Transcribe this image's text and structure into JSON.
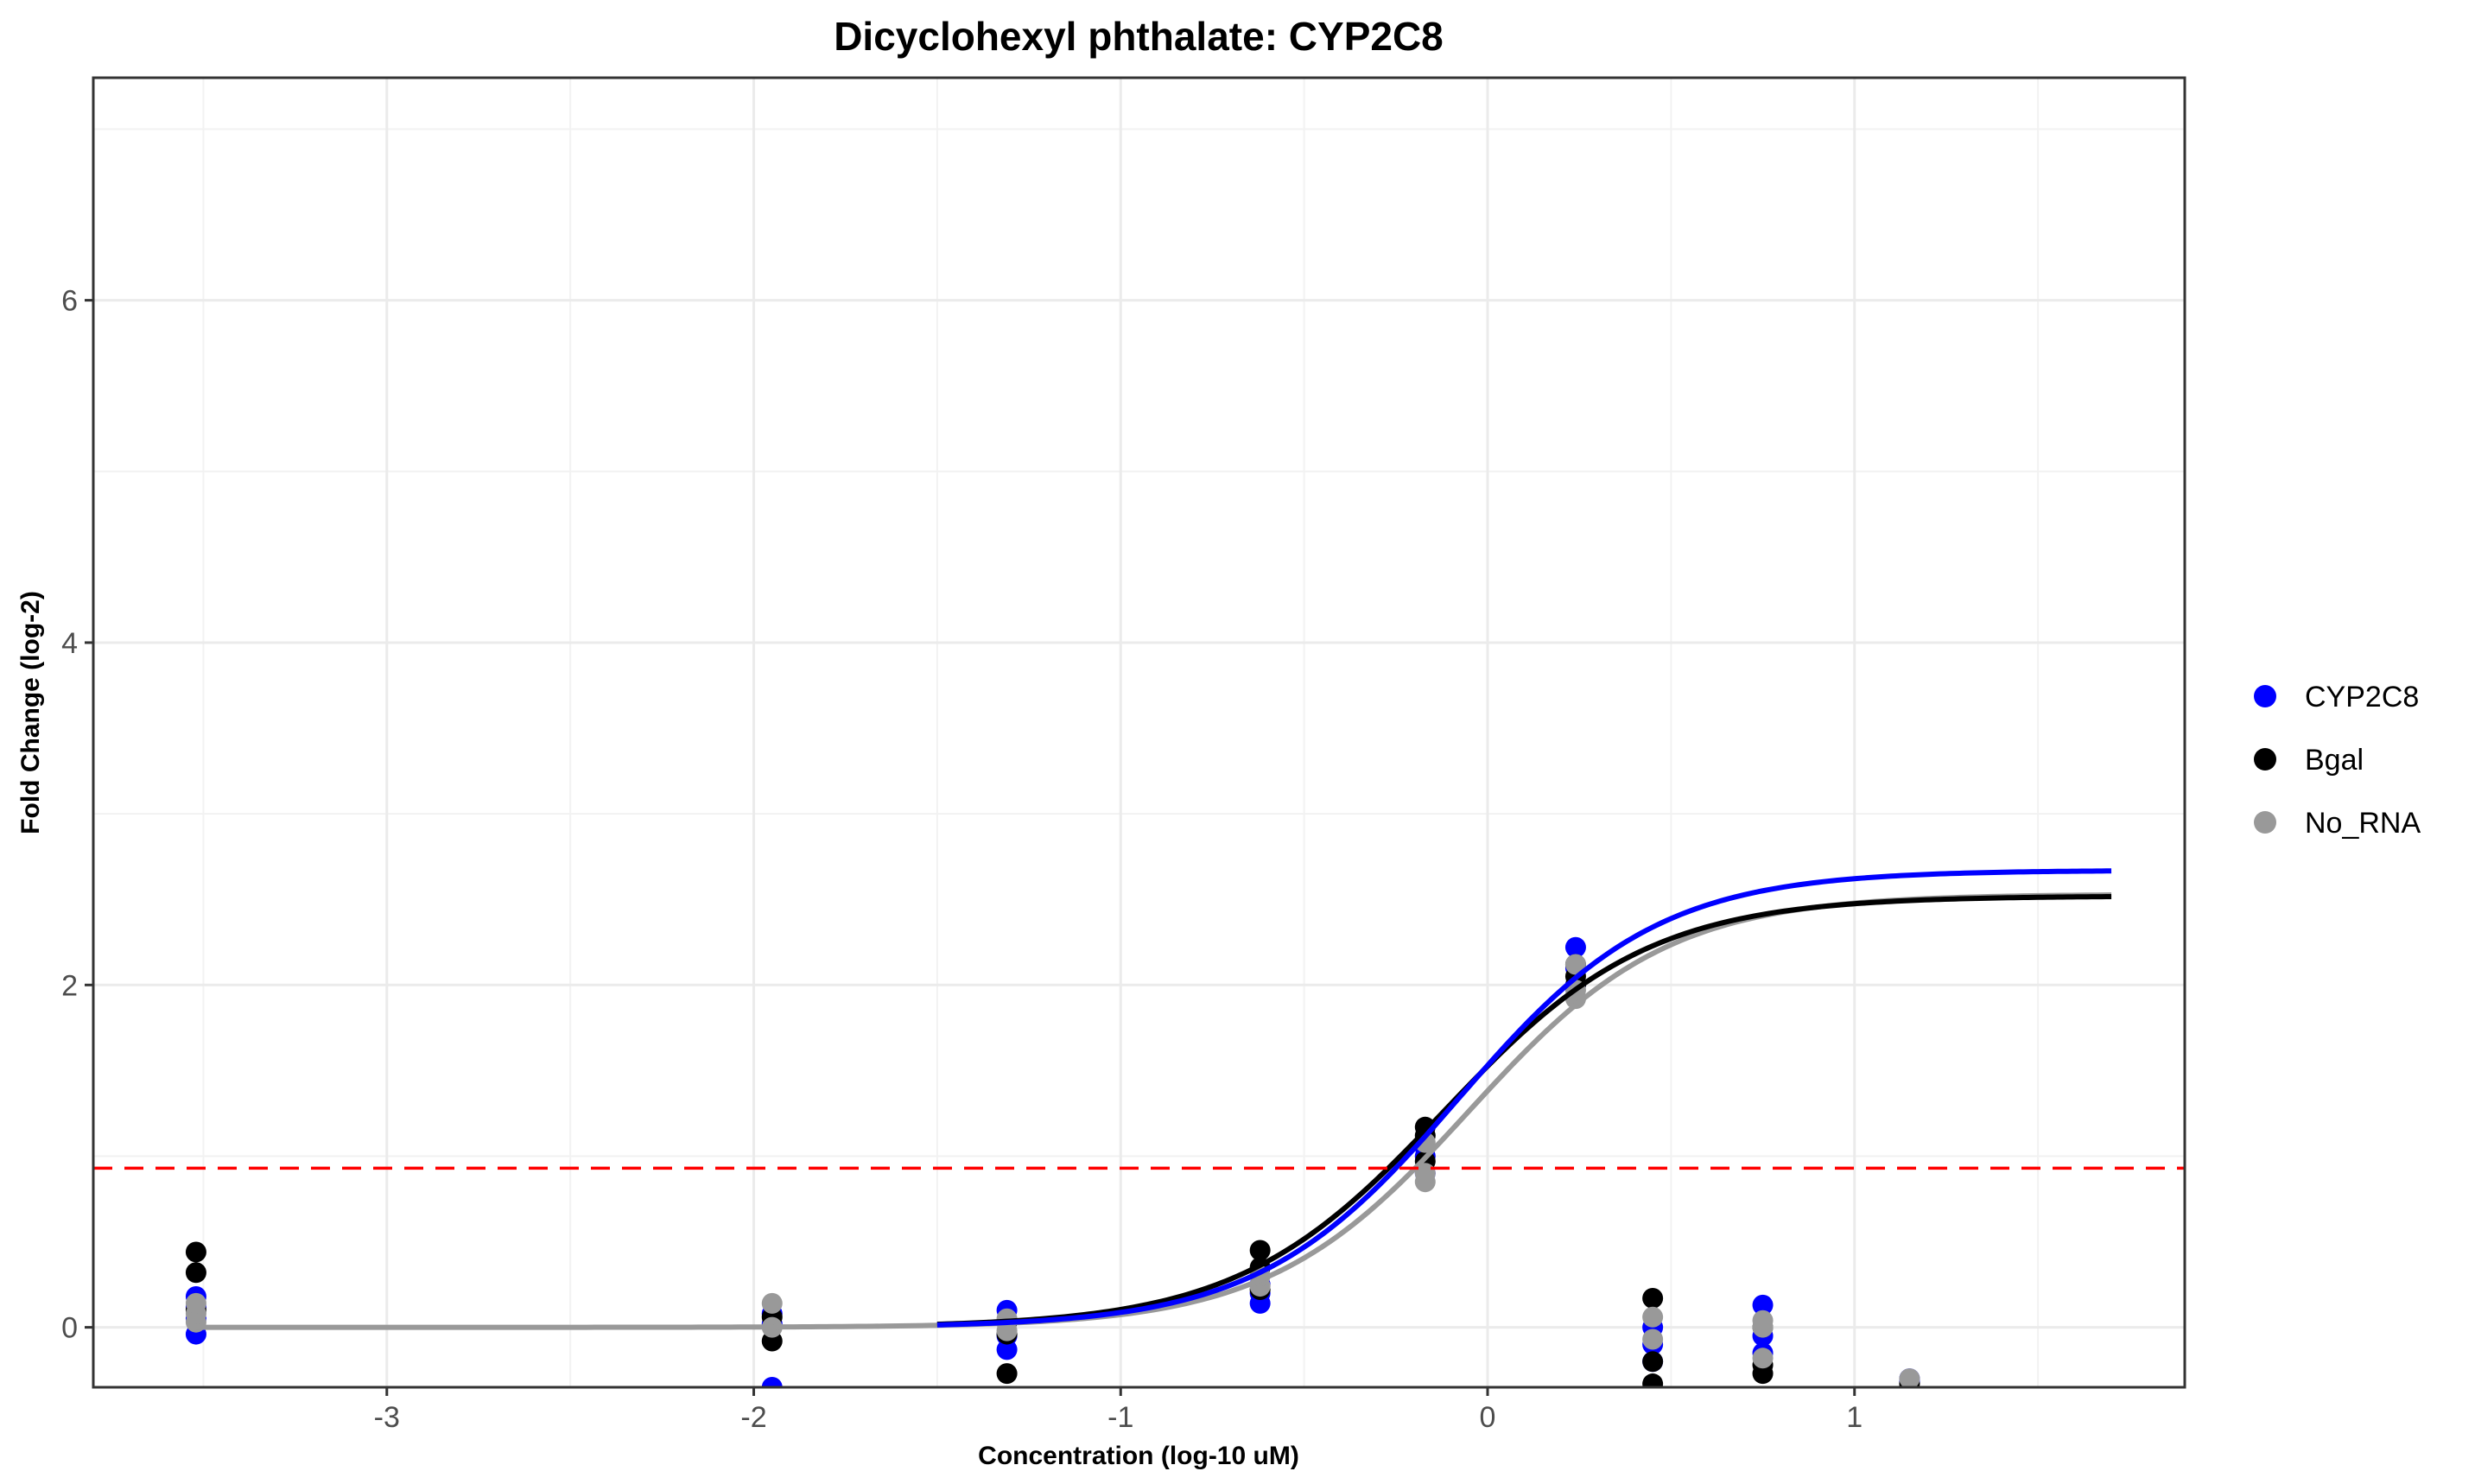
{
  "chart_data": {
    "type": "scatter",
    "title": "Dicyclohexyl phthalate: CYP2C8",
    "xlabel": "Concentration (log-10 uM)",
    "ylabel": "Fold Change (log-2)",
    "xlim": [
      -3.8,
      1.9
    ],
    "ylim": [
      -0.35,
      7.3
    ],
    "x_ticks": [
      -3,
      -2,
      -1,
      0,
      1
    ],
    "x_tick_labels": [
      "-3",
      "-2",
      "-1",
      "0",
      "1"
    ],
    "y_ticks": [
      0,
      2,
      4,
      6
    ],
    "y_tick_labels": [
      "0",
      "2",
      "4",
      "6"
    ],
    "grid": true,
    "legend_position": "right",
    "threshold": {
      "value": 0.93,
      "color": "#ff0000",
      "style": "dashed"
    },
    "series": [
      {
        "name": "CYP2C8",
        "color": "#0000ff",
        "points": [
          [
            -3.52,
            -0.04
          ],
          [
            -3.52,
            0.05
          ],
          [
            -3.52,
            0.12
          ],
          [
            -3.52,
            0.18
          ],
          [
            -1.95,
            -0.35
          ],
          [
            -1.95,
            0.02
          ],
          [
            -1.95,
            0.08
          ],
          [
            -1.31,
            -0.13
          ],
          [
            -1.31,
            -0.05
          ],
          [
            -1.31,
            0.1
          ],
          [
            -0.62,
            0.14
          ],
          [
            -0.62,
            0.2
          ],
          [
            -0.62,
            0.25
          ],
          [
            -0.17,
            0.9
          ],
          [
            -0.17,
            1.0
          ],
          [
            -0.17,
            1.05
          ],
          [
            0.24,
            2.0
          ],
          [
            0.24,
            2.1
          ],
          [
            0.24,
            2.22
          ],
          [
            0.45,
            -0.2
          ],
          [
            0.45,
            -0.1
          ],
          [
            0.45,
            0.0
          ],
          [
            0.75,
            -0.15
          ],
          [
            0.75,
            -0.05
          ],
          [
            0.75,
            0.13
          ],
          [
            1.15,
            -0.32
          ],
          [
            1.15,
            -0.3
          ]
        ],
        "fit": {
          "bottom": 0.0,
          "top": 2.67,
          "logEC50": -0.08,
          "slope": 1.6,
          "x_start": -1.5,
          "x_end": 1.7
        }
      },
      {
        "name": "Bgal",
        "color": "#000000",
        "points": [
          [
            -3.52,
            0.1
          ],
          [
            -3.52,
            0.32
          ],
          [
            -3.52,
            0.44
          ],
          [
            -1.95,
            -0.08
          ],
          [
            -1.95,
            0.06
          ],
          [
            -1.31,
            -0.27
          ],
          [
            -1.31,
            -0.04
          ],
          [
            -1.31,
            0.03
          ],
          [
            -0.62,
            0.22
          ],
          [
            -0.62,
            0.35
          ],
          [
            -0.62,
            0.45
          ],
          [
            -0.17,
            0.97
          ],
          [
            -0.17,
            1.12
          ],
          [
            -0.17,
            1.17
          ],
          [
            0.24,
            2.0
          ],
          [
            0.24,
            2.05
          ],
          [
            0.24,
            2.12
          ],
          [
            0.45,
            -0.33
          ],
          [
            0.45,
            -0.2
          ],
          [
            0.45,
            0.17
          ],
          [
            0.75,
            -0.27
          ],
          [
            0.75,
            -0.22
          ],
          [
            0.75,
            0.0
          ],
          [
            1.15,
            -0.33
          ]
        ],
        "fit": {
          "bottom": 0.0,
          "top": 2.52,
          "logEC50": -0.12,
          "slope": 1.55,
          "x_start": -1.5,
          "x_end": 1.7
        }
      },
      {
        "name": "No_RNA",
        "color": "#999999",
        "points": [
          [
            -3.52,
            0.03
          ],
          [
            -3.52,
            0.08
          ],
          [
            -3.52,
            0.14
          ],
          [
            -1.95,
            0.0
          ],
          [
            -1.95,
            0.14
          ],
          [
            -1.31,
            -0.02
          ],
          [
            -1.31,
            0.05
          ],
          [
            -0.62,
            0.24
          ],
          [
            -0.62,
            0.3
          ],
          [
            -0.17,
            0.85
          ],
          [
            -0.17,
            0.9
          ],
          [
            -0.17,
            1.08
          ],
          [
            0.24,
            1.92
          ],
          [
            0.24,
            1.97
          ],
          [
            0.24,
            2.12
          ],
          [
            0.45,
            -0.07
          ],
          [
            0.45,
            0.06
          ],
          [
            0.75,
            -0.18
          ],
          [
            0.75,
            0.0
          ],
          [
            0.75,
            0.04
          ],
          [
            1.15,
            -0.3
          ]
        ],
        "fit": {
          "bottom": 0.0,
          "top": 2.53,
          "logEC50": -0.05,
          "slope": 1.6,
          "x_start": -3.52,
          "x_end": 1.7
        }
      }
    ]
  }
}
